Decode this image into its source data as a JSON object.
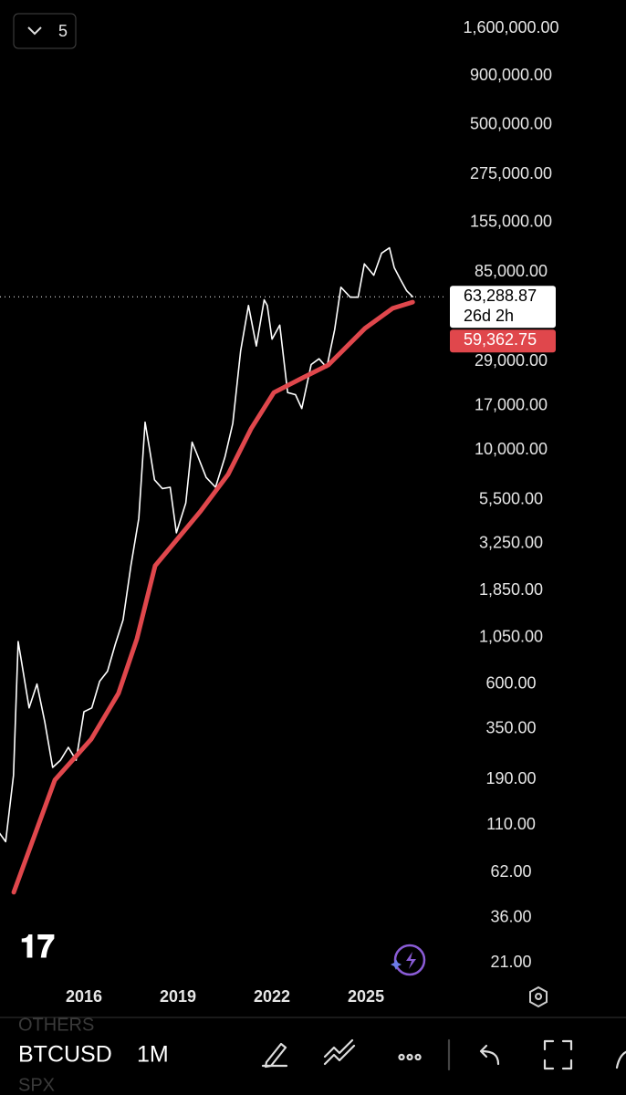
{
  "chart_data": {
    "type": "line",
    "symbol": "BTCUSD",
    "interval": "1M",
    "log_scale": true,
    "grid": false,
    "layout_count": "5",
    "xlim": [
      2013.32,
      2027.59
    ],
    "xticks": [
      2016,
      2019,
      2022,
      2025
    ],
    "ylim": [
      21,
      1600000
    ],
    "yticks": [
      {
        "value": 21,
        "label": "21.00"
      },
      {
        "value": 36,
        "label": "36.00"
      },
      {
        "value": 62,
        "label": "62.00"
      },
      {
        "value": 110,
        "label": "110.00"
      },
      {
        "value": 190,
        "label": "190.00"
      },
      {
        "value": 350,
        "label": "350.00"
      },
      {
        "value": 600,
        "label": "600.00"
      },
      {
        "value": 1050,
        "label": "1,050.00"
      },
      {
        "value": 1850,
        "label": "1,850.00"
      },
      {
        "value": 3250,
        "label": "3,250.00"
      },
      {
        "value": 5500,
        "label": "5,500.00"
      },
      {
        "value": 10000,
        "label": "10,000.00"
      },
      {
        "value": 17000,
        "label": "17,000.00"
      },
      {
        "value": 29000,
        "label": "29,000.00"
      },
      {
        "value": 85000,
        "label": "85,000.00"
      },
      {
        "value": 155000,
        "label": "155,000.00"
      },
      {
        "value": 275000,
        "label": "275,000.00"
      },
      {
        "value": 500000,
        "label": "500,000.00"
      },
      {
        "value": 900000,
        "label": "900,000.00"
      },
      {
        "value": 1600000,
        "label": "1,600,000.00"
      }
    ],
    "series": [
      {
        "name": "BTCUSD",
        "color": "#ffffff",
        "x": [
          2013.3,
          2013.5,
          2013.75,
          2013.9,
          2014.0,
          2014.25,
          2014.5,
          2014.75,
          2015.0,
          2015.25,
          2015.5,
          2015.75,
          2016.0,
          2016.25,
          2016.5,
          2016.75,
          2017.0,
          2017.25,
          2017.5,
          2017.75,
          2017.95,
          2018.1,
          2018.25,
          2018.5,
          2018.75,
          2018.95,
          2019.25,
          2019.45,
          2019.6,
          2019.9,
          2020.2,
          2020.5,
          2020.75,
          2021.0,
          2021.25,
          2021.5,
          2021.75,
          2021.85,
          2022.0,
          2022.25,
          2022.5,
          2022.75,
          2022.95,
          2023.25,
          2023.5,
          2023.75,
          2024.0,
          2024.2,
          2024.5,
          2024.75,
          2024.95,
          2025.25,
          2025.5,
          2025.75,
          2025.9,
          2026.1,
          2026.3,
          2026.49
        ],
        "values": [
          100,
          90,
          200,
          1000,
          800,
          450,
          600,
          380,
          220,
          240,
          280,
          240,
          430,
          450,
          620,
          700,
          970,
          1300,
          2500,
          4400,
          14000,
          10000,
          7000,
          6300,
          6400,
          3700,
          5300,
          11000,
          9600,
          7200,
          6400,
          9200,
          13800,
          33000,
          57000,
          35000,
          61000,
          57000,
          38000,
          45000,
          20000,
          19500,
          16500,
          28000,
          30000,
          27000,
          42500,
          71000,
          63000,
          63000,
          94000,
          82000,
          107000,
          114000,
          90000,
          78000,
          68000,
          63288.87
        ]
      },
      {
        "color": "#e0474c",
        "x": [
          2013.76,
          2015.07,
          2016.23,
          2017.1,
          2017.69,
          2018.27,
          2019.0,
          2019.73,
          2020.6,
          2021.33,
          2022.06,
          2022.93,
          2023.8,
          2024.97,
          2025.85,
          2026.49
        ],
        "values": [
          49,
          189,
          309,
          536,
          1035,
          2490,
          3460,
          4820,
          7470,
          12900,
          20000,
          23650,
          27900,
          43300,
          55100,
          59362.75
        ]
      }
    ],
    "last_price": {
      "value": 63288.87,
      "label": "63,288.87"
    },
    "countdown": "26d 2h",
    "ma_price": {
      "value": 59362.75,
      "label": "59,362.75"
    },
    "watchlist_above": "OTHERS",
    "watchlist_below": "SPX"
  }
}
